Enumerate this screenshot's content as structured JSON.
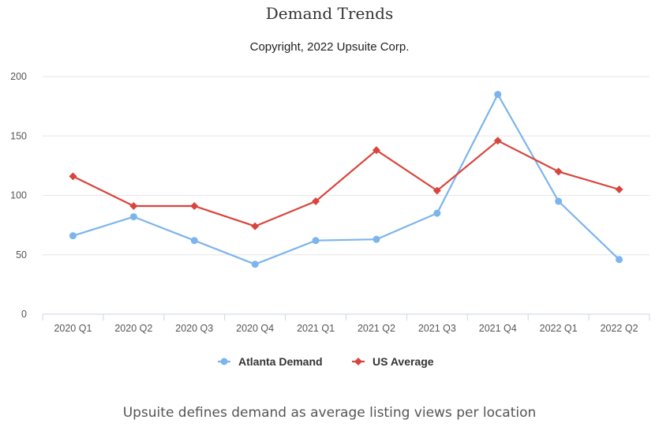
{
  "chart_data": {
    "type": "line",
    "title": "Demand Trends",
    "subtitle": "Copyright, 2022 Upsuite Corp.",
    "categories": [
      "2020 Q1",
      "2020 Q2",
      "2020 Q3",
      "2020 Q4",
      "2021 Q1",
      "2021 Q2",
      "2021 Q3",
      "2021 Q4",
      "2022 Q1",
      "2022 Q2"
    ],
    "series": [
      {
        "name": "Atlanta Demand",
        "color": "#7cb5ec",
        "marker": "circle",
        "values": [
          66,
          82,
          62,
          42,
          62,
          63,
          85,
          185,
          95,
          46
        ]
      },
      {
        "name": "US Average",
        "color": "#d9453d",
        "marker": "diamond",
        "values": [
          116,
          91,
          91,
          74,
          95,
          138,
          104,
          146,
          120,
          105
        ]
      }
    ],
    "xlabel": "",
    "ylabel": "",
    "ylim": [
      0,
      200
    ],
    "yticks": [
      0,
      50,
      100,
      150,
      200
    ],
    "grid": true,
    "legend_position": "bottom-center",
    "caption": "Upsuite defines demand as average listing views per location"
  }
}
